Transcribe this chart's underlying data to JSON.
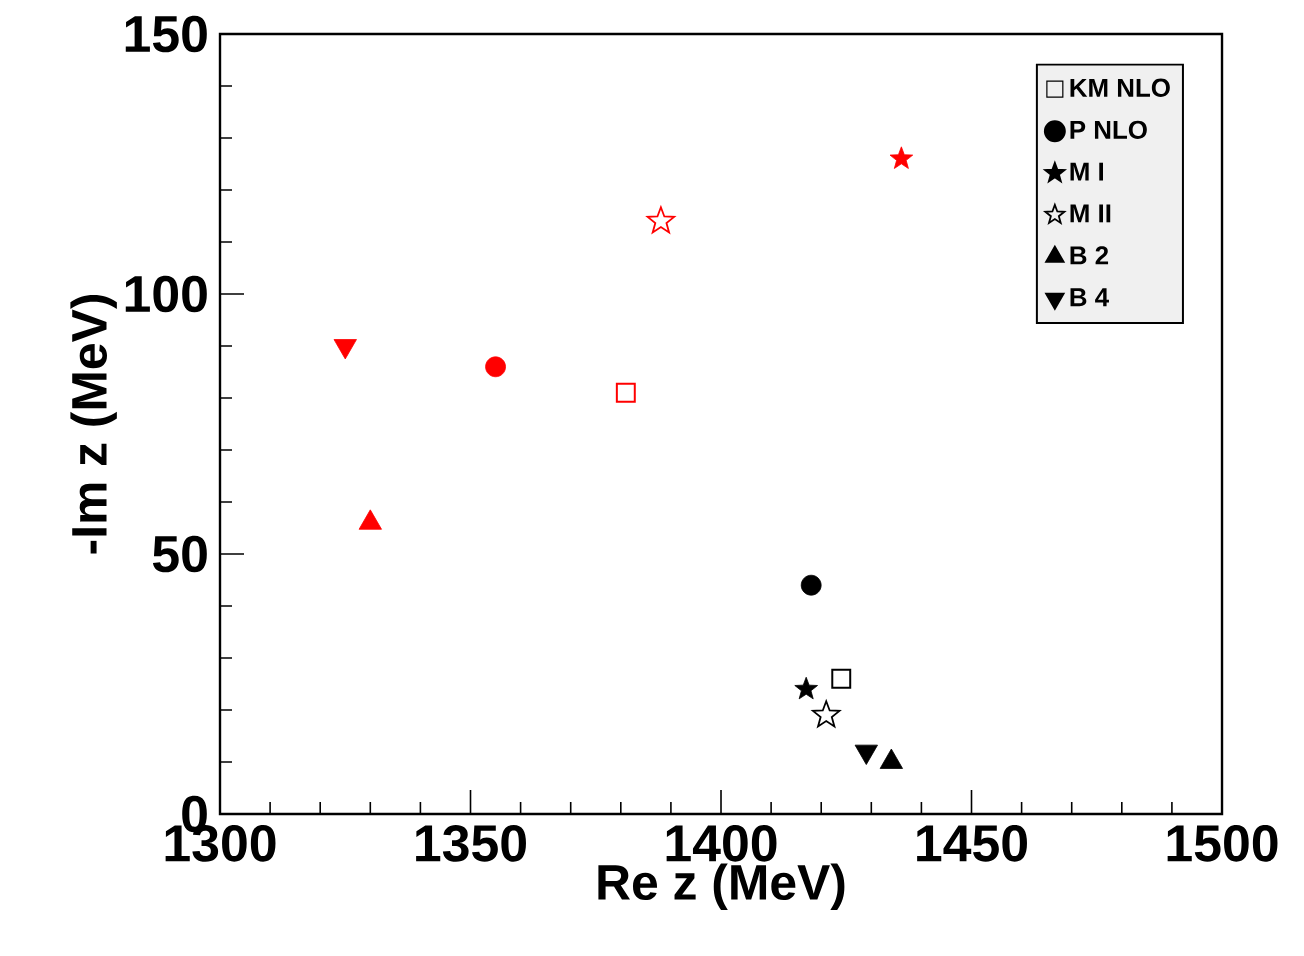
{
  "chart_data": {
    "type": "scatter",
    "xlabel": "Re z   (MeV)",
    "ylabel": "-Im z   (MeV)",
    "xlim": [
      1300,
      1500
    ],
    "ylim": [
      0,
      150
    ],
    "xticks": [
      1300,
      1350,
      1400,
      1450,
      1500
    ],
    "yticks": [
      0,
      50,
      100,
      150
    ],
    "legend": "top right",
    "grid": false,
    "series": [
      {
        "name": "KM NLO",
        "marker": "square",
        "x": [
          1381,
          1424
        ],
        "values": [
          81,
          26
        ],
        "colors": [
          "#ff0000",
          "#000000"
        ]
      },
      {
        "name": "P NLO",
        "marker": "circle",
        "x": [
          1355,
          1418
        ],
        "values": [
          86,
          44
        ],
        "colors": [
          "#ff0000",
          "#000000"
        ]
      },
      {
        "name": "M I",
        "marker": "star",
        "x": [
          1436,
          1417
        ],
        "values": [
          126,
          24
        ],
        "colors": [
          "#ff0000",
          "#000000"
        ]
      },
      {
        "name": "M II",
        "marker": "star",
        "x": [
          1388,
          1421
        ],
        "values": [
          114,
          19
        ],
        "colors": [
          "#ff0000",
          "#000000"
        ]
      },
      {
        "name": "B 2",
        "marker": "triangle",
        "x": [
          1330,
          1434
        ],
        "values": [
          56,
          10
        ],
        "colors": [
          "#ff0000",
          "#000000"
        ]
      },
      {
        "name": "B 4",
        "marker": "triangle-down",
        "x": [
          1325,
          1429
        ],
        "values": [
          90,
          12
        ],
        "colors": [
          "#ff0000",
          "#000000"
        ]
      }
    ]
  }
}
